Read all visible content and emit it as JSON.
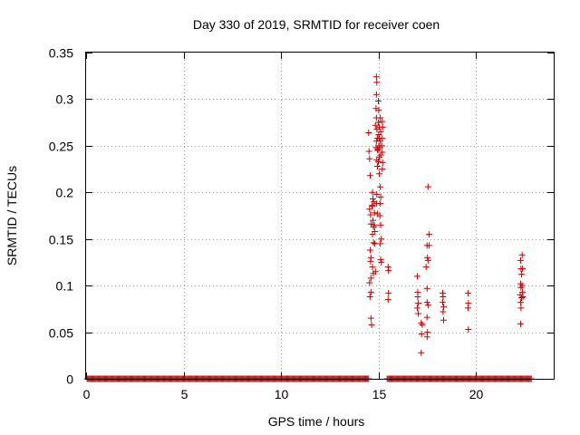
{
  "chart_data": {
    "type": "scatter",
    "title": "Day 330 of 2019, SRMTID for receiver coen",
    "xlabel": "GPS time / hours",
    "ylabel": "SRMTID / TECUs",
    "xlim": [
      0,
      24
    ],
    "ylim": [
      0,
      0.35
    ],
    "xticks": [
      0,
      5,
      10,
      15,
      20
    ],
    "xtick_labels": [
      "0",
      "5",
      "10",
      "15",
      "20"
    ],
    "yticks": [
      0,
      0.05,
      0.1,
      0.15,
      0.2,
      0.25,
      0.3,
      0.35
    ],
    "ytick_labels": [
      "0",
      "0.05",
      "0.1",
      "0.15",
      "0.2",
      "0.25",
      "0.3",
      "0.35"
    ],
    "grid": true,
    "marker": "+",
    "series": [
      {
        "name": "SRMTID",
        "color": "#cc0000",
        "zero_baseline_ranges": [
          [
            0.05,
            14.5
          ],
          [
            15.45,
            22.85
          ]
        ],
        "zero_baseline_step": 0.05,
        "points": [
          [
            14.5,
            0.264
          ],
          [
            14.52,
            0.244
          ],
          [
            14.55,
            0.236
          ],
          [
            14.58,
            0.218
          ],
          [
            14.55,
            0.182
          ],
          [
            14.6,
            0.176
          ],
          [
            14.62,
            0.166
          ],
          [
            14.58,
            0.138
          ],
          [
            14.62,
            0.13
          ],
          [
            14.6,
            0.126
          ],
          [
            14.62,
            0.108
          ],
          [
            14.55,
            0.103
          ],
          [
            14.62,
            0.093
          ],
          [
            14.57,
            0.088
          ],
          [
            14.62,
            0.065
          ],
          [
            14.65,
            0.058
          ],
          [
            14.7,
            0.2
          ],
          [
            14.72,
            0.193
          ],
          [
            14.68,
            0.186
          ],
          [
            14.72,
            0.17
          ],
          [
            14.75,
            0.163
          ],
          [
            14.7,
            0.155
          ],
          [
            14.75,
            0.146
          ],
          [
            14.7,
            0.12
          ],
          [
            14.74,
            0.113
          ],
          [
            14.7,
            0.185
          ],
          [
            14.78,
            0.19
          ],
          [
            14.8,
            0.178
          ],
          [
            14.8,
            0.165
          ],
          [
            14.82,
            0.158
          ],
          [
            14.85,
            0.115
          ],
          [
            14.82,
            0.145
          ],
          [
            14.9,
            0.324
          ],
          [
            14.92,
            0.318
          ],
          [
            14.9,
            0.305
          ],
          [
            14.88,
            0.29
          ],
          [
            14.9,
            0.28
          ],
          [
            14.85,
            0.272
          ],
          [
            14.92,
            0.268
          ],
          [
            14.95,
            0.258
          ],
          [
            14.9,
            0.255
          ],
          [
            14.88,
            0.248
          ],
          [
            14.95,
            0.246
          ],
          [
            14.92,
            0.235
          ],
          [
            14.95,
            0.228
          ],
          [
            14.98,
            0.245
          ],
          [
            14.92,
            0.198
          ],
          [
            14.9,
            0.188
          ],
          [
            14.95,
            0.177
          ],
          [
            15.0,
            0.298
          ],
          [
            15.02,
            0.288
          ],
          [
            15.0,
            0.275
          ],
          [
            15.05,
            0.27
          ],
          [
            15.02,
            0.262
          ],
          [
            15.05,
            0.258
          ],
          [
            15.02,
            0.25
          ],
          [
            15.05,
            0.238
          ],
          [
            15.0,
            0.233
          ],
          [
            15.05,
            0.22
          ],
          [
            15.1,
            0.28
          ],
          [
            15.12,
            0.265
          ],
          [
            15.1,
            0.255
          ],
          [
            15.08,
            0.248
          ],
          [
            15.12,
            0.24
          ],
          [
            15.1,
            0.206
          ],
          [
            15.12,
            0.195
          ],
          [
            15.1,
            0.188
          ],
          [
            15.08,
            0.175
          ],
          [
            15.12,
            0.165
          ],
          [
            15.15,
            0.15
          ],
          [
            15.1,
            0.145
          ],
          [
            15.12,
            0.128
          ],
          [
            15.15,
            0.125
          ],
          [
            15.2,
            0.276
          ],
          [
            15.22,
            0.27
          ],
          [
            15.2,
            0.258
          ],
          [
            15.18,
            0.25
          ],
          [
            15.2,
            0.243
          ],
          [
            15.22,
            0.232
          ],
          [
            15.2,
            0.225
          ],
          [
            15.5,
            0.12
          ],
          [
            15.52,
            0.116
          ],
          [
            15.52,
            0.092
          ],
          [
            15.5,
            0.085
          ],
          [
            17.0,
            0.11
          ],
          [
            17.02,
            0.093
          ],
          [
            17.02,
            0.088
          ],
          [
            17.05,
            0.081
          ],
          [
            17.0,
            0.076
          ],
          [
            17.05,
            0.07
          ],
          [
            17.2,
            0.06
          ],
          [
            17.22,
            0.048
          ],
          [
            17.2,
            0.028
          ],
          [
            17.25,
            0.058
          ],
          [
            17.45,
            0.12
          ],
          [
            17.5,
            0.143
          ],
          [
            17.52,
            0.13
          ],
          [
            17.55,
            0.127
          ],
          [
            17.6,
            0.155
          ],
          [
            17.6,
            0.143
          ],
          [
            17.55,
            0.206
          ],
          [
            17.5,
            0.097
          ],
          [
            17.5,
            0.082
          ],
          [
            17.55,
            0.079
          ],
          [
            17.5,
            0.066
          ],
          [
            17.52,
            0.05
          ],
          [
            17.5,
            0.045
          ],
          [
            18.3,
            0.092
          ],
          [
            18.32,
            0.088
          ],
          [
            18.3,
            0.082
          ],
          [
            18.35,
            0.077
          ],
          [
            18.32,
            0.072
          ],
          [
            18.35,
            0.063
          ],
          [
            19.6,
            0.092
          ],
          [
            19.62,
            0.081
          ],
          [
            19.6,
            0.076
          ],
          [
            19.62,
            0.053
          ],
          [
            22.3,
            0.127
          ],
          [
            22.32,
            0.118
          ],
          [
            22.35,
            0.112
          ],
          [
            22.3,
            0.102
          ],
          [
            22.32,
            0.098
          ],
          [
            22.28,
            0.09
          ],
          [
            22.35,
            0.087
          ],
          [
            22.3,
            0.082
          ],
          [
            22.32,
            0.076
          ],
          [
            22.3,
            0.059
          ],
          [
            22.38,
            0.133
          ],
          [
            22.4,
            0.118
          ],
          [
            22.38,
            0.1
          ],
          [
            22.4,
            0.093
          ],
          [
            22.42,
            0.088
          ]
        ]
      }
    ]
  }
}
